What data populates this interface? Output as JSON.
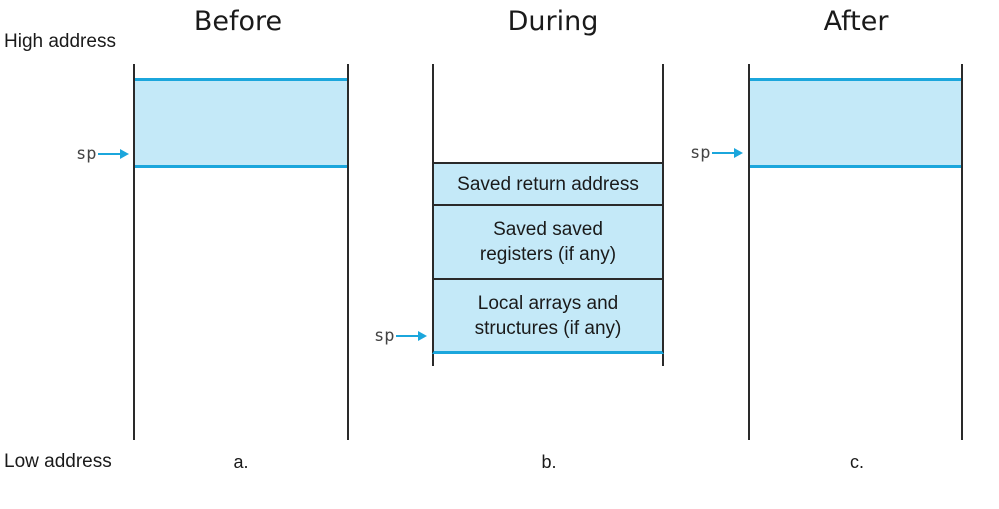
{
  "titles": {
    "before": "Before",
    "during": "During",
    "after": "After"
  },
  "axis": {
    "high": "High address",
    "low": "Low address"
  },
  "sub_labels": {
    "a": "a.",
    "b": "b.",
    "c": "c."
  },
  "pointer_label": "sp",
  "during_frame": {
    "return_address": "Saved return address",
    "saved_registers": "Saved saved\nregisters (if any)",
    "local_arrays": "Local arrays and\nstructures (if any)"
  },
  "colors": {
    "frame_fill": "#c4e9f8",
    "accent": "#1ba6dc",
    "line": "#2a2a2a"
  }
}
